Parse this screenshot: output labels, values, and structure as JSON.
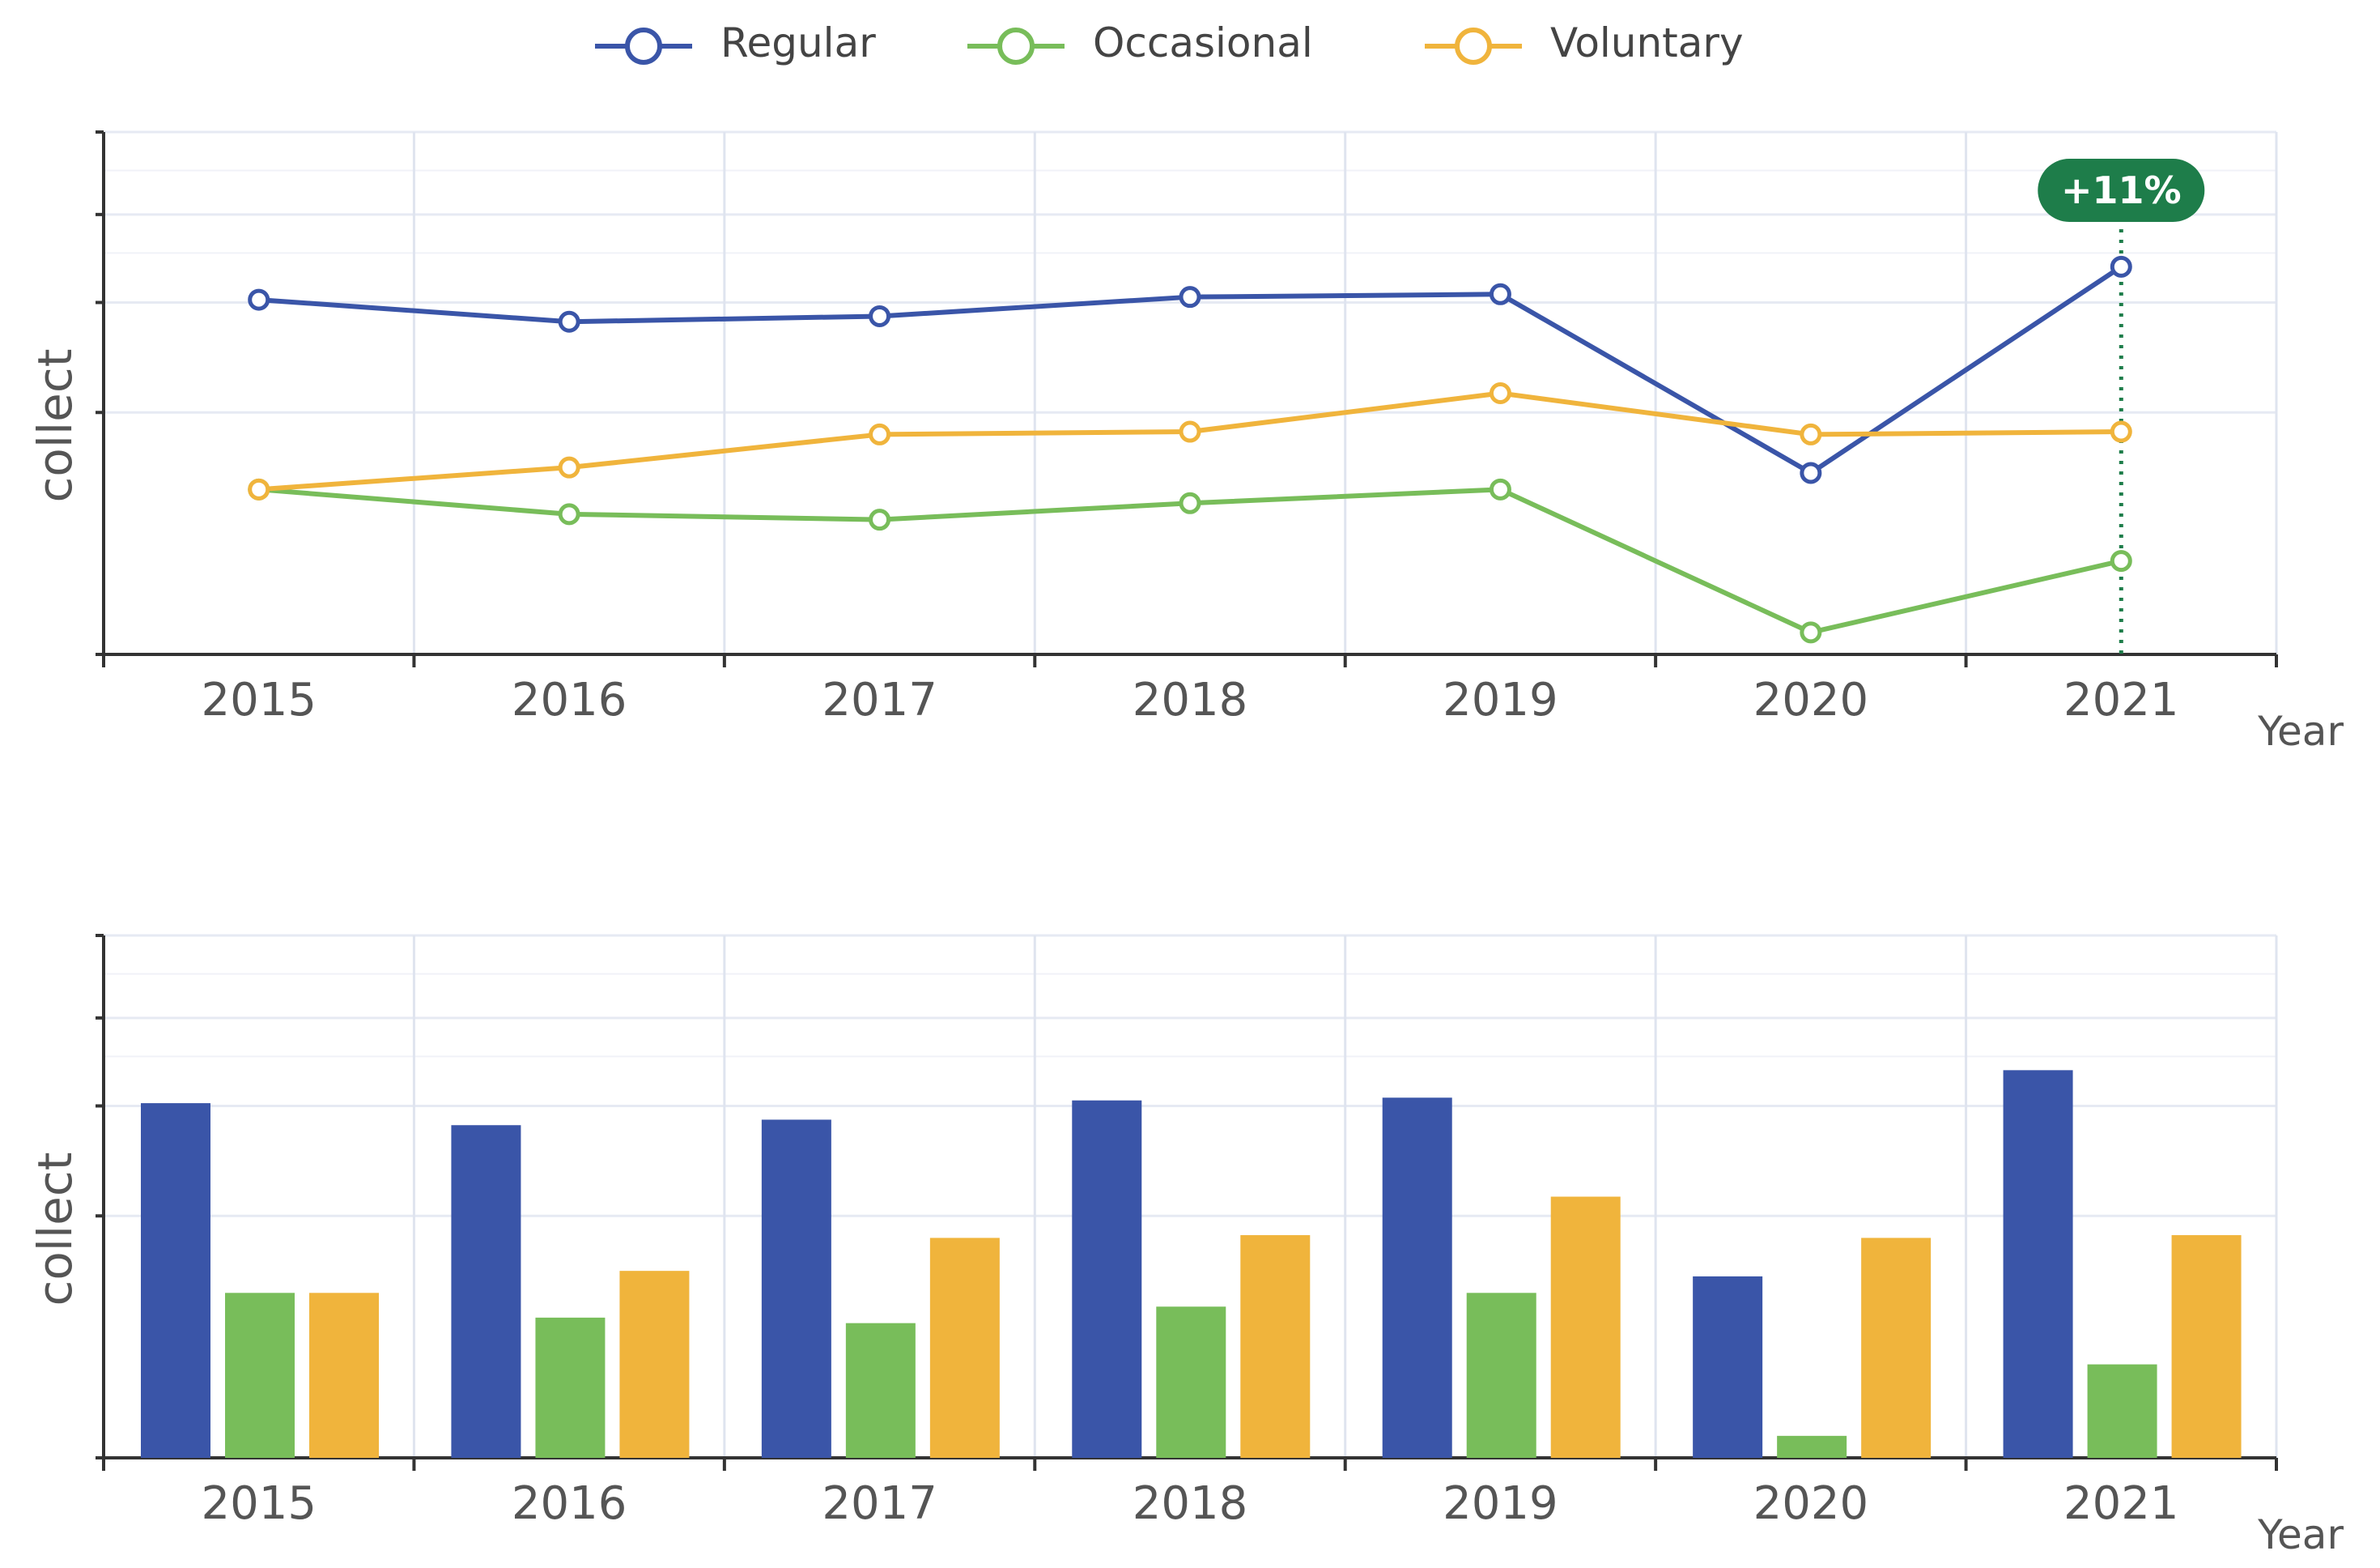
{
  "legend": {
    "items": [
      {
        "label": "Regular",
        "color": "#3a55a8"
      },
      {
        "label": "Occasional",
        "color": "#78bd5a"
      },
      {
        "label": "Voluntary",
        "color": "#f0b43c"
      }
    ]
  },
  "chart_data": [
    {
      "type": "line",
      "categories": [
        "2015",
        "2016",
        "2017",
        "2018",
        "2019",
        "2020",
        "2021"
      ],
      "series": [
        {
          "name": "Regular",
          "values": [
            64.5,
            60.5,
            61.5,
            65.0,
            65.5,
            33.0,
            70.5
          ]
        },
        {
          "name": "Occasional",
          "values": [
            30.0,
            25.5,
            24.5,
            27.5,
            30.0,
            4.0,
            17.0
          ]
        },
        {
          "name": "Voluntary",
          "values": [
            30.0,
            34.0,
            40.0,
            40.5,
            47.5,
            40.0,
            40.5
          ]
        }
      ],
      "xlabel": "Year",
      "ylabel": "collect",
      "ylim": [
        0,
        95
      ],
      "yticks": [
        0,
        44,
        64,
        80,
        95
      ],
      "annotation": {
        "category": "2021",
        "text": "+11%",
        "color": "#1e7d4a"
      }
    },
    {
      "type": "bar",
      "categories": [
        "2015",
        "2016",
        "2017",
        "2018",
        "2019",
        "2020",
        "2021"
      ],
      "series": [
        {
          "name": "Regular",
          "values": [
            64.5,
            60.5,
            61.5,
            65.0,
            65.5,
            33.0,
            70.5
          ]
        },
        {
          "name": "Occasional",
          "values": [
            30.0,
            25.5,
            24.5,
            27.5,
            30.0,
            4.0,
            17.0
          ]
        },
        {
          "name": "Voluntary",
          "values": [
            30.0,
            34.0,
            40.0,
            40.5,
            47.5,
            40.0,
            40.5
          ]
        }
      ],
      "xlabel": "Year",
      "ylabel": "collect",
      "ylim": [
        0,
        95
      ],
      "yticks": [
        0,
        44,
        64,
        80,
        95
      ]
    }
  ]
}
